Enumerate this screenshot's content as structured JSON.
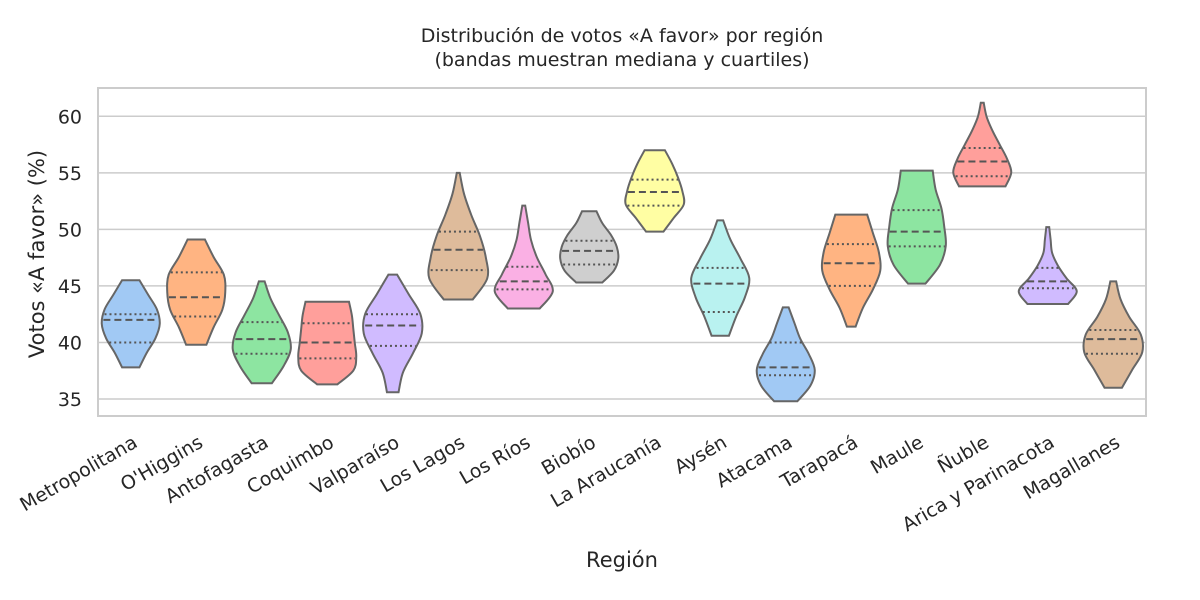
{
  "chart_data": {
    "type": "violin",
    "title_line1": "Distribución de votos «A favor» por región",
    "title_line2": "(bandas muestran mediana y cuartiles)",
    "xlabel": "Región",
    "ylabel": "Votos «A favor» (%)",
    "ylim": [
      33.5,
      62.5
    ],
    "yticks": [
      35,
      40,
      45,
      50,
      55,
      60
    ],
    "grid": "horizontal",
    "inner": "quartile",
    "categories": [
      "Metropolitana",
      "O'Higgins",
      "Antofagasta",
      "Coquimbo",
      "Valparaíso",
      "Los Lagos",
      "Los Ríos",
      "Biobío",
      "La Araucanía",
      "Aysén",
      "Atacama",
      "Tarapacá",
      "Maule",
      "Ñuble",
      "Arica y Parinacota",
      "Magallanes"
    ],
    "series": [
      {
        "region": "Metropolitana",
        "min": 37.8,
        "q1": 40.0,
        "median": 42.0,
        "q3": 42.5,
        "max": 45.5,
        "color": "#a1c9f4",
        "width": [
          0.3,
          0.55,
          0.85,
          1.0,
          0.9,
          0.6,
          0.3
        ]
      },
      {
        "region": "O'Higgins",
        "min": 39.8,
        "q1": 42.3,
        "median": 44.0,
        "q3": 46.2,
        "max": 49.1,
        "color": "#ffb482",
        "width": [
          0.35,
          0.6,
          0.9,
          1.0,
          0.95,
          0.6,
          0.3
        ]
      },
      {
        "region": "Antofagasta",
        "min": 36.4,
        "q1": 39.0,
        "median": 40.3,
        "q3": 41.8,
        "max": 45.4,
        "color": "#8de5a1",
        "width": [
          0.35,
          0.75,
          1.0,
          0.9,
          0.6,
          0.3,
          0.1
        ]
      },
      {
        "region": "Coquimbo",
        "min": 36.3,
        "q1": 38.6,
        "median": 40.0,
        "q3": 41.7,
        "max": 43.6,
        "color": "#ff9f9b",
        "width": [
          0.35,
          0.9,
          1.0,
          0.95,
          0.9,
          0.85,
          0.75
        ]
      },
      {
        "region": "Valparaíso",
        "min": 35.6,
        "q1": 39.7,
        "median": 41.5,
        "q3": 42.5,
        "max": 46.0,
        "color": "#d0bbff",
        "width": [
          0.2,
          0.35,
          0.7,
          1.0,
          0.95,
          0.55,
          0.15
        ]
      },
      {
        "region": "Los Lagos",
        "min": 43.8,
        "q1": 46.4,
        "median": 48.2,
        "q3": 49.8,
        "max": 55.0,
        "color": "#debb9b",
        "width": [
          0.5,
          1.0,
          0.95,
          0.75,
          0.45,
          0.2,
          0.05
        ]
      },
      {
        "region": "Los Ríos",
        "min": 43.0,
        "q1": 44.7,
        "median": 45.4,
        "q3": 46.7,
        "max": 52.1,
        "color": "#fab0e4",
        "width": [
          0.55,
          1.0,
          0.75,
          0.45,
          0.25,
          0.15,
          0.05
        ]
      },
      {
        "region": "Biobío",
        "min": 45.3,
        "q1": 46.9,
        "median": 48.1,
        "q3": 49.0,
        "max": 51.6,
        "color": "#cfcfcf",
        "width": [
          0.45,
          0.85,
          1.0,
          0.95,
          0.75,
          0.45,
          0.25
        ]
      },
      {
        "region": "La Araucanía",
        "min": 49.8,
        "q1": 52.1,
        "median": 53.3,
        "q3": 54.4,
        "max": 57.0,
        "color": "#fffea3",
        "width": [
          0.3,
          0.65,
          1.0,
          0.95,
          0.8,
          0.6,
          0.35
        ]
      },
      {
        "region": "Aysén",
        "min": 40.6,
        "q1": 42.7,
        "median": 45.2,
        "q3": 46.6,
        "max": 50.8,
        "color": "#b9f2f0",
        "width": [
          0.3,
          0.55,
          0.85,
          1.0,
          0.7,
          0.35,
          0.1
        ]
      },
      {
        "region": "Atacama",
        "min": 34.8,
        "q1": 37.1,
        "median": 37.8,
        "q3": 40.0,
        "max": 43.1,
        "color": "#a1c9f4",
        "width": [
          0.4,
          0.85,
          1.0,
          0.8,
          0.5,
          0.3,
          0.1
        ]
      },
      {
        "region": "Tarapacá",
        "min": 41.4,
        "q1": 45.0,
        "median": 47.0,
        "q3": 48.7,
        "max": 51.3,
        "color": "#ffb482",
        "width": [
          0.15,
          0.4,
          0.75,
          1.0,
          0.95,
          0.75,
          0.55
        ]
      },
      {
        "region": "Maule",
        "min": 45.2,
        "q1": 48.5,
        "median": 49.8,
        "q3": 51.7,
        "max": 55.2,
        "color": "#8de5a1",
        "width": [
          0.3,
          0.8,
          1.0,
          0.95,
          0.85,
          0.65,
          0.55
        ]
      },
      {
        "region": "Ñuble",
        "min": 53.8,
        "q1": 54.7,
        "median": 56.0,
        "q3": 57.2,
        "max": 61.2,
        "color": "#ff9f9b",
        "width": [
          0.8,
          1.0,
          0.85,
          0.6,
          0.35,
          0.15,
          0.05
        ]
      },
      {
        "region": "Arica y Parinacota",
        "min": 43.4,
        "q1": 44.8,
        "median": 45.4,
        "q3": 46.6,
        "max": 50.2,
        "color": "#d0bbff",
        "width": [
          0.7,
          1.0,
          0.65,
          0.35,
          0.15,
          0.1,
          0.05
        ]
      },
      {
        "region": "Magallanes",
        "min": 36.0,
        "q1": 39.0,
        "median": 40.3,
        "q3": 41.1,
        "max": 45.4,
        "color": "#debb9b",
        "width": [
          0.3,
          0.65,
          1.0,
          0.95,
          0.55,
          0.25,
          0.1
        ]
      }
    ]
  }
}
